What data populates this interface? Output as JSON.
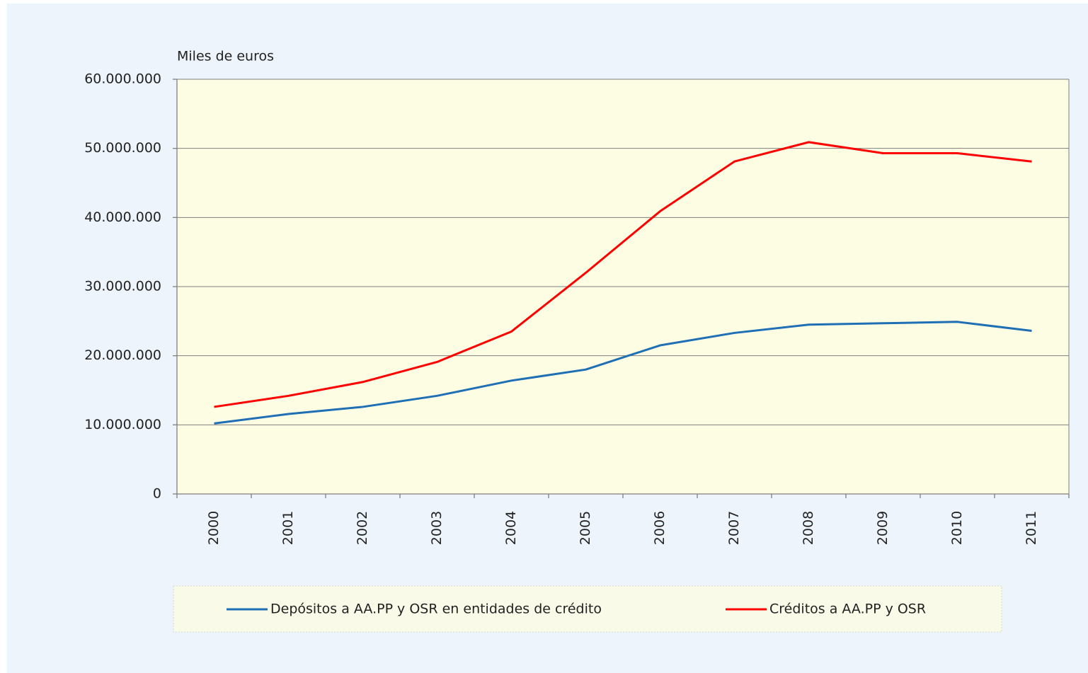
{
  "chart_data": {
    "type": "line",
    "y_axis_label": "Miles de euros",
    "categories": [
      "2000",
      "2001",
      "2002",
      "2003",
      "2004",
      "2005",
      "2006",
      "2007",
      "2008",
      "2009",
      "2010",
      "2011"
    ],
    "series": [
      {
        "name": "Depósitos a AA.PP y OSR en entidades de crédito",
        "color": "#1f6fb5",
        "values": [
          10200000,
          11570000,
          12600000,
          14200000,
          16400000,
          18000000,
          21500000,
          23300000,
          24500000,
          24700000,
          24900000,
          23600000
        ]
      },
      {
        "name": "Créditos a AA.PP y OSR",
        "color": "#ff0000",
        "values": [
          12600000,
          14200000,
          16200000,
          19100000,
          23500000,
          32000000,
          40900000,
          48100000,
          50900000,
          49300000,
          49300000,
          48100000
        ]
      }
    ],
    "ylim": [
      0,
      60000000
    ],
    "yticks": [
      0,
      {
        "value": 10000000,
        "label": "10.000.000"
      },
      {
        "value": 20000000,
        "label": "20.000.000"
      },
      {
        "value": 30000000,
        "label": "30.000.000"
      },
      {
        "value": 40000000,
        "label": "40.000.000"
      },
      {
        "value": 50000000,
        "label": "50.000.000"
      },
      {
        "value": 60000000,
        "label": "60.000.000"
      }
    ],
    "grid": true,
    "legend": "bottom"
  }
}
